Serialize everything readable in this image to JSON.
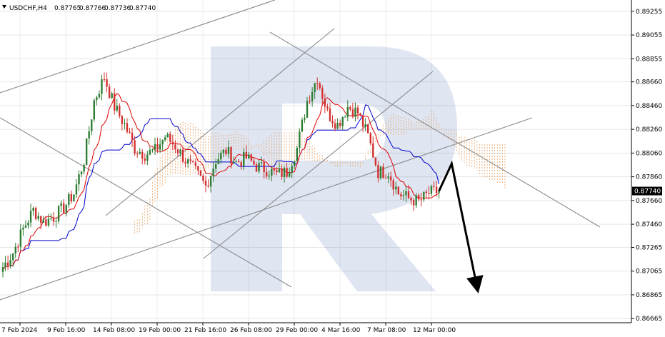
{
  "header": {
    "symbol": "USDCHF,H4",
    "quotes": [
      "0.87765",
      "0.87766",
      "0.87736",
      "0.87740"
    ],
    "menu_icon": "triangle-down-icon"
  },
  "current_price": "0.87740",
  "colors": {
    "bull": "#2e7d32",
    "bear": "#d32f2f",
    "tenkan": "#e00000",
    "kijun": "#0000cc",
    "cloud": "#e8a060",
    "trendline": "#888888",
    "forecast": "#000000",
    "watermark": "#3a5fa8"
  },
  "chart_data": {
    "type": "candlestick",
    "x_ticks": [
      "7 Feb 2024",
      "9 Feb 16:00",
      "14 Feb 08:00",
      "19 Feb 00:00",
      "21 Feb 16:00",
      "26 Feb 08:00",
      "29 Feb 00:00",
      "4 Mar 16:00",
      "7 Mar 08:00",
      "12 Mar 00:00"
    ],
    "y_ticks": [
      "0.89255",
      "0.89055",
      "0.88855",
      "0.88660",
      "0.88460",
      "0.88260",
      "0.88060",
      "0.87860",
      "0.87660",
      "0.87460",
      "0.87265",
      "0.87065",
      "0.86865",
      "0.86665"
    ],
    "y_tick_values": [
      0.89255,
      0.89055,
      0.88855,
      0.8866,
      0.8846,
      0.8826,
      0.8806,
      0.8786,
      0.8766,
      0.8746,
      0.87265,
      0.87065,
      0.86865,
      0.86665
    ],
    "ylim": [
      0.8663,
      0.8935
    ],
    "bars": 114,
    "close_path": [
      [
        0,
        0.871
      ],
      [
        4,
        0.8722
      ],
      [
        8,
        0.8742
      ],
      [
        12,
        0.8758
      ],
      [
        16,
        0.8748
      ],
      [
        20,
        0.8752
      ],
      [
        24,
        0.876
      ],
      [
        28,
        0.8772
      ],
      [
        32,
        0.88
      ],
      [
        36,
        0.885
      ],
      [
        40,
        0.887
      ],
      [
        44,
        0.8845
      ],
      [
        48,
        0.883
      ],
      [
        52,
        0.881
      ],
      [
        56,
        0.8805
      ],
      [
        60,
        0.8808
      ],
      [
        64,
        0.882
      ],
      [
        68,
        0.8812
      ],
      [
        72,
        0.88
      ],
      [
        76,
        0.879
      ],
      [
        80,
        0.8778
      ],
      [
        84,
        0.88
      ],
      [
        88,
        0.8808
      ],
      [
        92,
        0.8798
      ],
      [
        96,
        0.8802
      ],
      [
        100,
        0.8795
      ],
      [
        104,
        0.8792
      ],
      [
        108,
        0.8788
      ],
      [
        112,
        0.879
      ],
      [
        116,
        0.881
      ],
      [
        120,
        0.885
      ],
      [
        124,
        0.887
      ],
      [
        128,
        0.884
      ],
      [
        132,
        0.883
      ],
      [
        136,
        0.8845
      ],
      [
        140,
        0.884
      ],
      [
        144,
        0.882
      ],
      [
        148,
        0.879
      ],
      [
        152,
        0.879
      ],
      [
        156,
        0.8772
      ],
      [
        160,
        0.8768
      ],
      [
        164,
        0.8765
      ],
      [
        168,
        0.8772
      ],
      [
        172,
        0.8774
      ]
    ],
    "forecast_path": [
      [
        172,
        0.8774
      ],
      [
        177,
        0.8797
      ],
      [
        187,
        0.8693
      ]
    ]
  }
}
